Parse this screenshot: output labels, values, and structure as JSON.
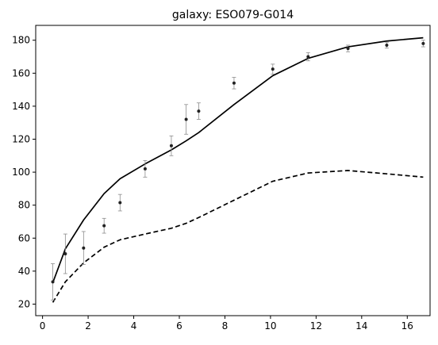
{
  "chart_data": {
    "type": "line",
    "title": "galaxy: ESO079-G014",
    "xlabel": "",
    "ylabel": "",
    "xlim": [
      -0.3,
      17.0
    ],
    "ylim": [
      13,
      189
    ],
    "xticks": [
      0,
      2,
      4,
      6,
      8,
      10,
      12,
      14,
      16
    ],
    "yticks": [
      20,
      40,
      60,
      80,
      100,
      120,
      140,
      160,
      180
    ],
    "grid": false,
    "observed": {
      "x": [
        0.45,
        1.0,
        1.8,
        2.7,
        3.4,
        4.5,
        5.65,
        6.3,
        6.85,
        8.4,
        10.1,
        11.65,
        13.4,
        15.1,
        16.7
      ],
      "y": [
        33.5,
        50.5,
        54.0,
        67.5,
        81.5,
        102.0,
        116.0,
        132.0,
        137.0,
        154.0,
        162.5,
        170.0,
        175.0,
        177.0,
        178.0
      ],
      "err": [
        11.0,
        12.0,
        10.0,
        4.5,
        5.0,
        5.0,
        6.0,
        9.0,
        5.0,
        3.5,
        3.0,
        2.5,
        2.0,
        1.8,
        2.0
      ]
    },
    "series": [
      {
        "style": "solid",
        "x": [
          0.45,
          1.0,
          1.8,
          2.7,
          3.4,
          4.5,
          5.65,
          6.3,
          6.85,
          8.4,
          10.1,
          11.65,
          13.4,
          15.1,
          16.7
        ],
        "y": [
          33.0,
          53.5,
          71.0,
          87.0,
          96.0,
          105.0,
          113.5,
          119.0,
          124.0,
          141.0,
          158.5,
          169.0,
          176.0,
          179.5,
          181.5
        ]
      },
      {
        "style": "dashed",
        "x": [
          0.45,
          1.0,
          1.8,
          2.7,
          3.4,
          4.5,
          5.65,
          6.3,
          6.85,
          8.4,
          10.1,
          11.65,
          13.4,
          15.1,
          16.7
        ],
        "y": [
          21.0,
          33.5,
          45.0,
          54.5,
          59.0,
          62.5,
          66.0,
          69.0,
          72.5,
          83.0,
          94.5,
          99.5,
          101.0,
          99.0,
          97.0
        ]
      }
    ]
  }
}
